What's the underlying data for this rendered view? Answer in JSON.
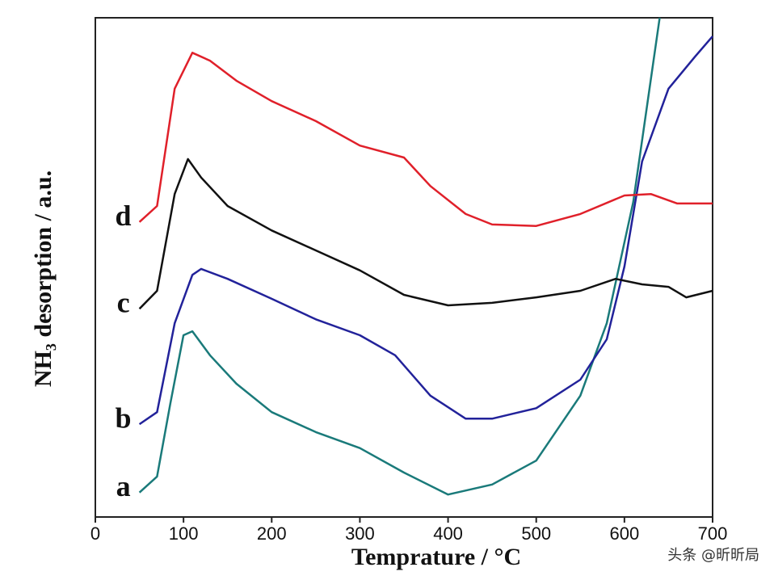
{
  "chart_data": {
    "type": "line",
    "xlabel": "Temprature / °C",
    "ylabel": "NH₃ desorption / a.u.",
    "watermark": "头条 @昕昕局",
    "xlim": [
      0,
      700
    ],
    "xticks": [
      0,
      100,
      200,
      300,
      400,
      500,
      600,
      700
    ],
    "ylim": [
      0,
      100
    ],
    "series": [
      {
        "name": "a",
        "color": "#1a7a7a",
        "x": [
          50,
          70,
          85,
          100,
          110,
          130,
          160,
          200,
          250,
          300,
          350,
          400,
          450,
          500,
          550,
          580,
          610,
          640
        ],
        "values": [
          4.9,
          8.1,
          22.7,
          36.4,
          37.2,
          32.4,
          26.7,
          21.0,
          17.0,
          13.8,
          8.9,
          4.5,
          6.5,
          11.3,
          24.3,
          38.8,
          63.1,
          100
        ]
      },
      {
        "name": "b",
        "color": "#22229a",
        "x": [
          50,
          70,
          90,
          110,
          120,
          150,
          200,
          250,
          300,
          340,
          380,
          420,
          450,
          500,
          550,
          580,
          600,
          620,
          650,
          680,
          700
        ],
        "values": [
          18.6,
          21.0,
          38.8,
          48.5,
          49.7,
          47.7,
          43.7,
          39.6,
          36.4,
          32.4,
          24.3,
          19.7,
          19.7,
          21.8,
          27.5,
          35.6,
          50.2,
          71.2,
          85.8,
          92.2,
          96.3
        ]
      },
      {
        "name": "c",
        "color": "#111111",
        "x": [
          50,
          70,
          90,
          105,
          120,
          150,
          200,
          250,
          300,
          350,
          400,
          450,
          500,
          550,
          590,
          620,
          650,
          670,
          700
        ],
        "values": [
          41.7,
          45.3,
          64.7,
          71.7,
          68.0,
          62.3,
          57.4,
          53.4,
          49.4,
          44.5,
          42.4,
          42.9,
          44.0,
          45.3,
          47.7,
          46.6,
          46.1,
          44.0,
          45.3
        ]
      },
      {
        "name": "d",
        "color": "#e0202a",
        "x": [
          50,
          70,
          90,
          110,
          130,
          160,
          200,
          250,
          300,
          350,
          380,
          420,
          450,
          500,
          550,
          600,
          630,
          660,
          700
        ],
        "values": [
          59.1,
          62.3,
          85.8,
          93.0,
          91.4,
          87.4,
          83.3,
          79.3,
          74.4,
          72.0,
          66.3,
          60.7,
          58.6,
          58.3,
          60.7,
          64.4,
          64.7,
          62.8,
          62.8
        ]
      }
    ]
  }
}
